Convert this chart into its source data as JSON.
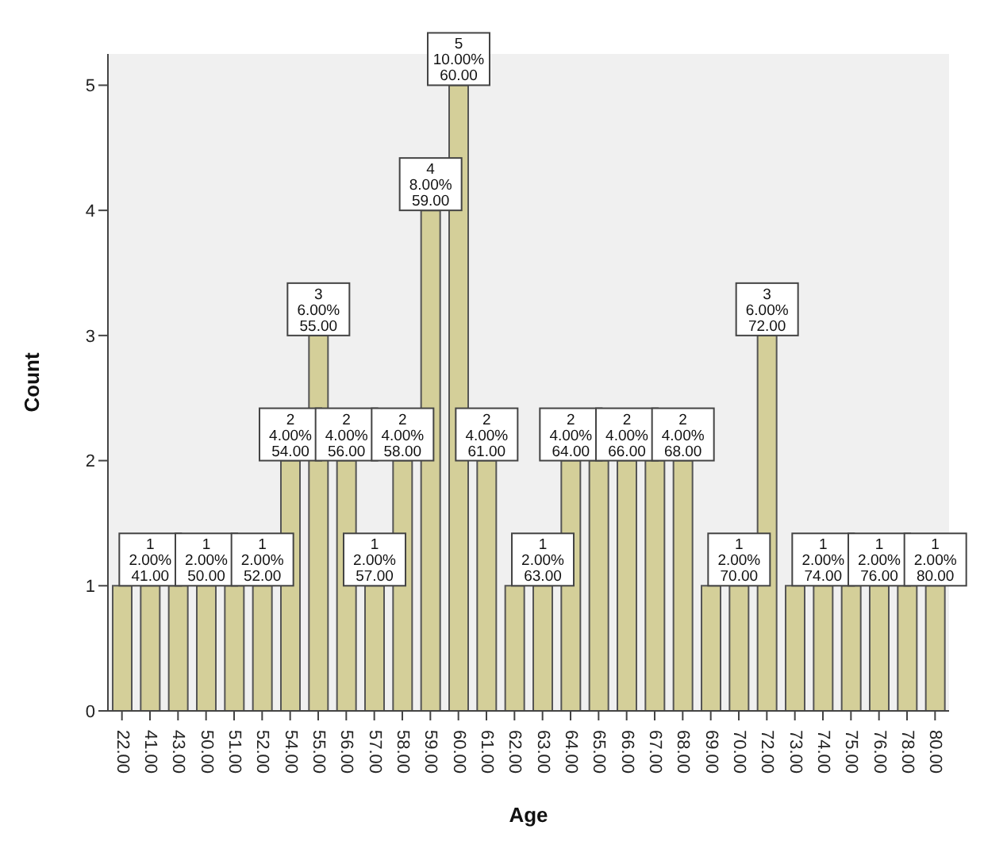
{
  "chart_data": {
    "type": "bar",
    "xlabel": "Age",
    "ylabel": "Count",
    "categories": [
      "22.00",
      "41.00",
      "43.00",
      "50.00",
      "51.00",
      "52.00",
      "54.00",
      "55.00",
      "56.00",
      "57.00",
      "58.00",
      "59.00",
      "60.00",
      "61.00",
      "62.00",
      "63.00",
      "64.00",
      "65.00",
      "66.00",
      "67.00",
      "68.00",
      "69.00",
      "70.00",
      "72.00",
      "73.00",
      "74.00",
      "75.00",
      "76.00",
      "78.00",
      "80.00"
    ],
    "values": [
      1,
      1,
      1,
      1,
      1,
      1,
      2,
      3,
      2,
      1,
      2,
      4,
      5,
      2,
      1,
      1,
      2,
      2,
      2,
      2,
      2,
      1,
      1,
      3,
      1,
      1,
      1,
      1,
      1,
      1
    ],
    "value_labels": [
      null,
      "1\n2.00%\n41.00",
      null,
      "1\n2.00%\n50.00",
      null,
      "1\n2.00%\n52.00",
      "2\n4.00%\n54.00",
      "3\n6.00%\n55.00",
      "2\n4.00%\n56.00",
      "1\n2.00%\n57.00",
      "2\n4.00%\n58.00",
      "4\n8.00%\n59.00",
      "5\n10.00%\n60.00",
      "2\n4.00%\n61.00",
      null,
      "1\n2.00%\n63.00",
      "2\n4.00%\n64.00",
      null,
      "2\n4.00%\n66.00",
      null,
      "2\n4.00%\n68.00",
      null,
      "1\n2.00%\n70.00",
      "3\n6.00%\n72.00",
      null,
      "1\n2.00%\n74.00",
      null,
      "1\n2.00%\n76.00",
      null,
      "1\n2.00%\n80.00"
    ],
    "color": "#d4cf99",
    "ylim": [
      0,
      5.25
    ],
    "yticks": [
      0,
      1,
      2,
      3,
      4,
      5
    ]
  }
}
